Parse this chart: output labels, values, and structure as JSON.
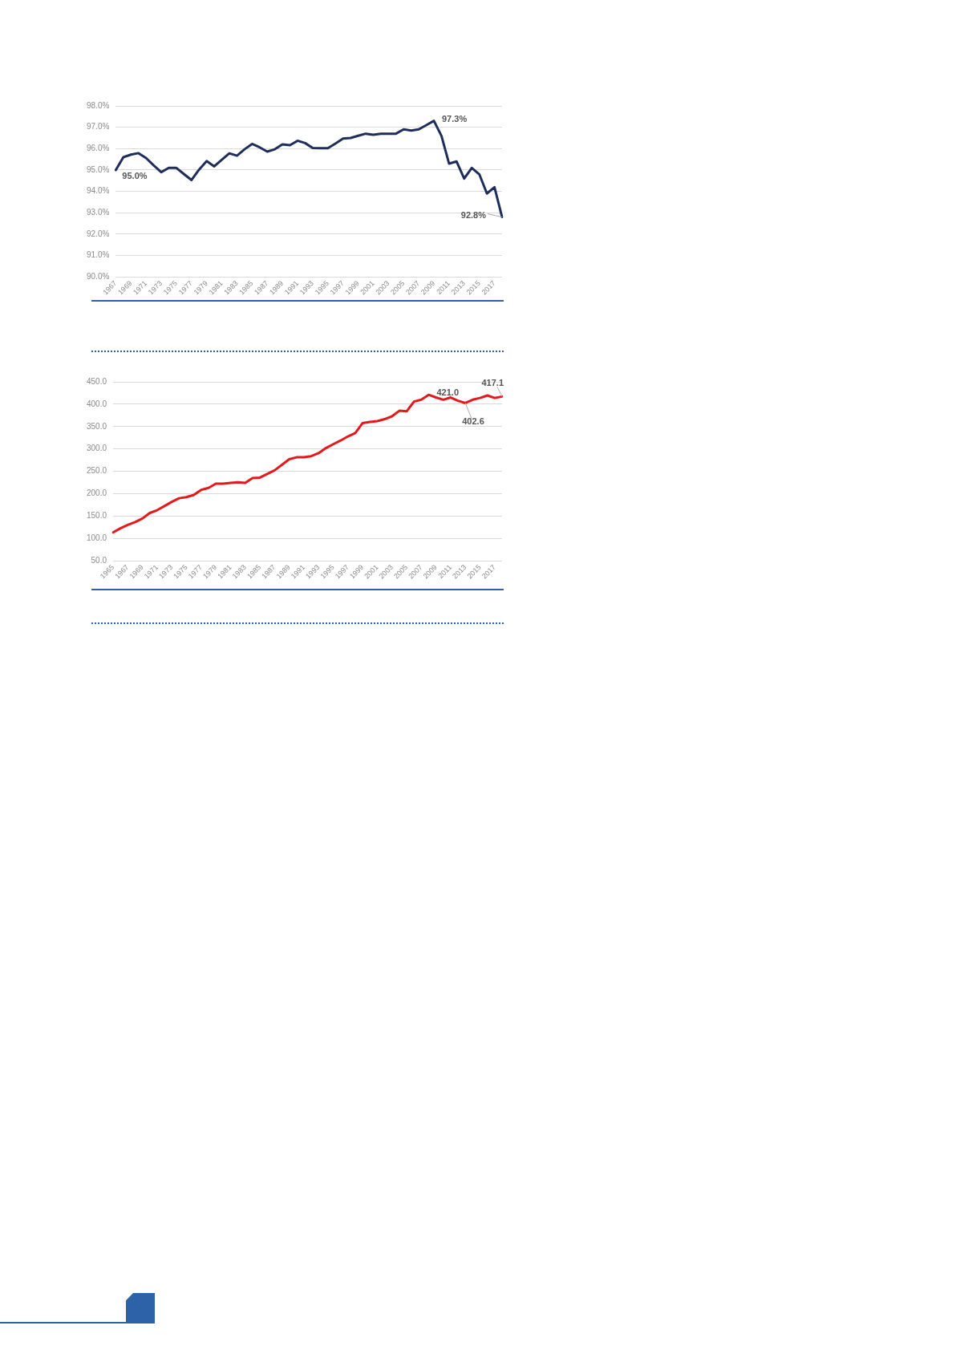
{
  "chart_data": [
    {
      "type": "line",
      "categories": [
        "1967",
        null,
        "1969",
        null,
        "1971",
        null,
        "1973",
        null,
        "1975",
        null,
        "1977",
        null,
        "1979",
        null,
        "1981",
        null,
        "1983",
        null,
        "1985",
        null,
        "1987",
        null,
        "1989",
        null,
        "1991",
        null,
        "1993",
        null,
        "1995",
        null,
        "1997",
        null,
        "1999",
        null,
        "2001",
        null,
        "2003",
        null,
        "2005",
        null,
        "2007",
        null,
        "2009",
        null,
        "2011",
        null,
        "2013",
        null,
        "2015",
        null,
        "2017",
        null
      ],
      "series": [
        {
          "color": "#1f2d5c",
          "values": [
            95.0,
            95.6,
            95.72,
            95.79,
            95.56,
            95.22,
            94.9,
            95.1,
            95.1,
            94.81,
            94.53,
            95.02,
            95.42,
            95.17,
            95.48,
            95.78,
            95.67,
            95.97,
            96.22,
            96.06,
            95.86,
            95.97,
            96.2,
            96.16,
            96.37,
            96.26,
            96.03,
            96.02,
            96.02,
            96.24,
            96.47,
            96.5,
            96.6,
            96.7,
            96.65,
            96.7,
            96.7,
            96.7,
            96.9,
            96.85,
            96.9,
            97.1,
            97.3,
            96.6,
            95.3,
            95.4,
            94.6,
            95.1,
            94.8,
            93.9,
            94.2,
            92.8
          ]
        }
      ],
      "ylim": [
        90,
        98
      ],
      "yticks": [
        {
          "value": 90,
          "label": "90.0%"
        },
        {
          "value": 91,
          "label": "91.0%"
        },
        {
          "value": 92,
          "label": "92.0%"
        },
        {
          "value": 93,
          "label": "93.0%"
        },
        {
          "value": 94,
          "label": "94.0%"
        },
        {
          "value": 95,
          "label": "95.0%"
        },
        {
          "value": 96,
          "label": "96.0%"
        },
        {
          "value": 97,
          "label": "97.0%"
        },
        {
          "value": 98,
          "label": "98.0%"
        }
      ],
      "grid": "y",
      "legend": false,
      "marker": "none",
      "line_style": "solid",
      "annotations": [
        {
          "text": "95.0%",
          "x": "1967",
          "y": 95.0
        },
        {
          "text": "97.3%",
          "x": "2009",
          "y": 97.3
        },
        "92.8%"
      ]
    },
    {
      "type": "line",
      "categories": [
        "1965",
        null,
        "1967",
        null,
        "1969",
        null,
        "1971",
        null,
        "1973",
        null,
        "1975",
        null,
        "1977",
        null,
        "1979",
        null,
        "1981",
        null,
        "1983",
        null,
        "1985",
        null,
        "1987",
        null,
        "1989",
        null,
        "1991",
        null,
        "1993",
        null,
        "1995",
        null,
        "1997",
        null,
        "1999",
        null,
        "2001",
        null,
        "2003",
        null,
        "2005",
        null,
        "2007",
        null,
        "2009",
        null,
        "2011",
        null,
        "2013",
        null,
        "2015",
        null,
        "2017",
        null
      ],
      "series": [
        {
          "color": "#e3191c",
          "values": [
            113.5,
            122.8,
            130.3,
            136.5,
            144.6,
            157.0,
            163.2,
            172.5,
            181.9,
            189.9,
            192.5,
            197.4,
            208.6,
            213.0,
            222.3,
            222.3,
            224.2,
            225.4,
            224.2,
            234.8,
            236.0,
            244.1,
            252.2,
            264.6,
            277.1,
            281.4,
            281.4,
            283.9,
            290.7,
            302.0,
            310.7,
            318.8,
            328.1,
            335.5,
            357.9,
            360.4,
            362.3,
            366.6,
            372.9,
            385.3,
            384.0,
            405.8,
            410.2,
            421.0,
            415.0,
            410.0,
            415.0,
            407.7,
            402.6,
            410.0,
            413.9,
            419.5,
            413.9,
            417.1
          ]
        }
      ],
      "ylim": [
        50,
        450
      ],
      "yticks": [
        {
          "value": 50,
          "label": "50.0"
        },
        {
          "value": 100,
          "label": "100.0"
        },
        {
          "value": 150,
          "label": "150.0"
        },
        {
          "value": 200,
          "label": "200.0"
        },
        {
          "value": 250,
          "label": "250.0"
        },
        {
          "value": 300,
          "label": "300.0"
        },
        {
          "value": 350,
          "label": "350.0"
        },
        {
          "value": 400,
          "label": "400.0"
        },
        {
          "value": 450,
          "label": "450.0"
        }
      ],
      "grid": "y",
      "legend": false,
      "marker": "none",
      "line_style": "solid",
      "annotations": [
        "421.0",
        {
          "text": "402.6",
          "x": "2013",
          "y": 402.6
        },
        "417.1"
      ]
    }
  ]
}
